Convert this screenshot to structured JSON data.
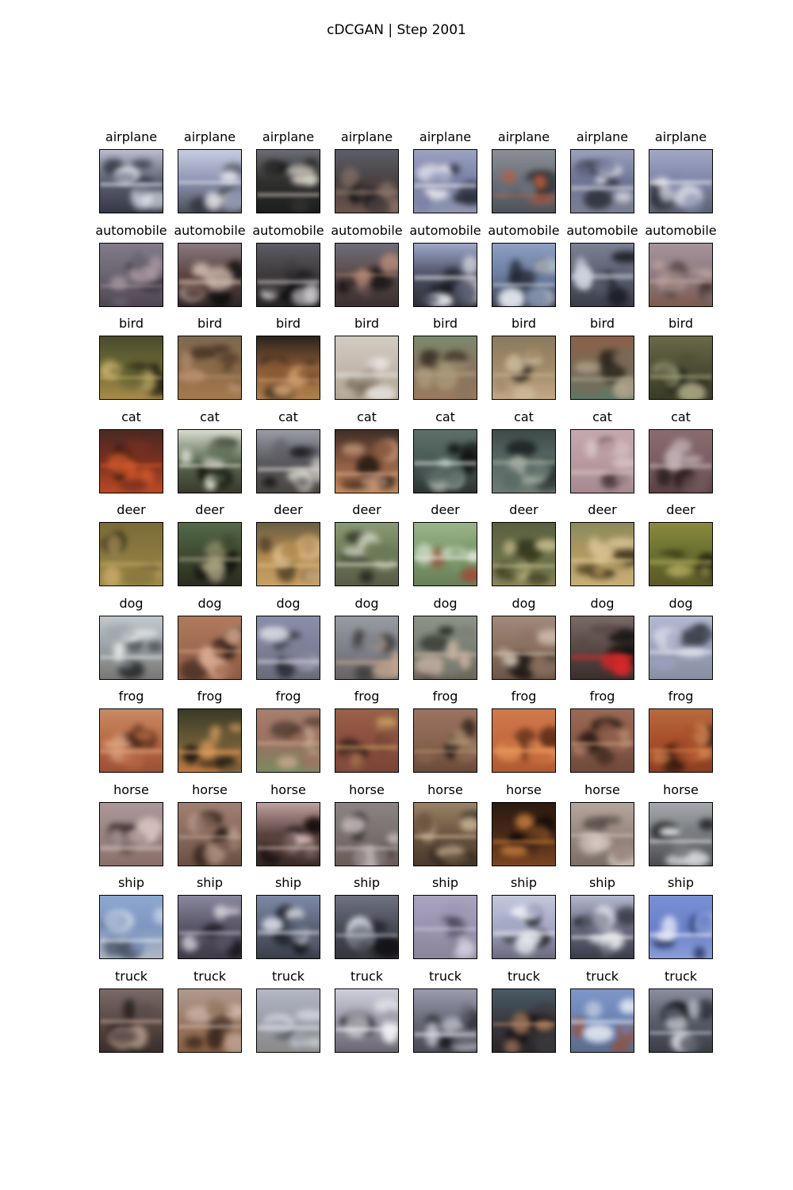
{
  "title": "cDCGAN | Step 2001",
  "rows": [
    {
      "label": "airplane",
      "cells": [
        {
          "bg": "#5d5f72",
          "top": "#b9bed0",
          "bottom": "#353845",
          "accent": "#e8eef5",
          "dark": "#1a1c25"
        },
        {
          "bg": "#8c93b0",
          "top": "#c8cde0",
          "bottom": "#4c4e58",
          "accent": "#f2f2f5",
          "dark": "#2a2c33"
        },
        {
          "bg": "#30302e",
          "top": "#6a6d73",
          "bottom": "#1c1d1d",
          "accent": "#dcd6ca",
          "dark": "#0f1010"
        },
        {
          "bg": "#4a403f",
          "top": "#5c5e6a",
          "bottom": "#6b544a",
          "accent": "#8f7a70",
          "dark": "#141316"
        },
        {
          "bg": "#7a80a4",
          "top": "#9ca2c2",
          "bottom": "#8f94ae",
          "accent": "#e9e9f0",
          "dark": "#2b2d3a"
        },
        {
          "bg": "#6a7078",
          "top": "#8a8f94",
          "bottom": "#4e5259",
          "accent": "#c45a3c",
          "dark": "#2c3136"
        },
        {
          "bg": "#6f7594",
          "top": "#9aa0bd",
          "bottom": "#7b7f92",
          "accent": "#d6d7df",
          "dark": "#1c1d24"
        },
        {
          "bg": "#7e85a8",
          "top": "#a1a7c5",
          "bottom": "#5d6170",
          "accent": "#e5e7ee",
          "dark": "#2d2f38"
        }
      ]
    },
    {
      "label": "automobile",
      "cells": [
        {
          "bg": "#6a6470",
          "top": "#837c88",
          "bottom": "#4f4650",
          "accent": "#b8a7b0",
          "dark": "#2a262d"
        },
        {
          "bg": "#5a4440",
          "top": "#8a7a80",
          "bottom": "#2e2626",
          "accent": "#d9c1b4",
          "dark": "#120f10"
        },
        {
          "bg": "#3e3a3c",
          "top": "#5d5c66",
          "bottom": "#252324",
          "accent": "#d9d6d8",
          "dark": "#0e0e10"
        },
        {
          "bg": "#5b4a4a",
          "top": "#6f6d78",
          "bottom": "#3a2f30",
          "accent": "#b78b7a",
          "dark": "#161314"
        },
        {
          "bg": "#4c5064",
          "top": "#9fa8c8",
          "bottom": "#2e2d33",
          "accent": "#eef0f5",
          "dark": "#14141a"
        },
        {
          "bg": "#6b7da0",
          "top": "#8da0c2",
          "bottom": "#3b3f4c",
          "accent": "#e1e6ef",
          "dark": "#1a1d26"
        },
        {
          "bg": "#5b5f70",
          "top": "#7c8196",
          "bottom": "#3a3d48",
          "accent": "#cfd3df",
          "dark": "#1d1f27"
        },
        {
          "bg": "#8e7a80",
          "top": "#a5949a",
          "bottom": "#7c5a4e",
          "accent": "#c4a9a6",
          "dark": "#3e2e2d"
        }
      ]
    },
    {
      "label": "bird",
      "cells": [
        {
          "bg": "#6b6a36",
          "top": "#4b4b2c",
          "bottom": "#a98a48",
          "accent": "#c8b06a",
          "dark": "#1c1d12"
        },
        {
          "bg": "#8a6a48",
          "top": "#7d6a52",
          "bottom": "#a57a4f",
          "accent": "#b89070",
          "dark": "#3e2a1e"
        },
        {
          "bg": "#8a5a36",
          "top": "#2a231b",
          "bottom": "#b0814d",
          "accent": "#d0a070",
          "dark": "#1a140f"
        },
        {
          "bg": "#c2b9ad",
          "top": "#d2ccc3",
          "bottom": "#b0a290",
          "accent": "#e8e4de",
          "dark": "#6e6152"
        },
        {
          "bg": "#8a7560",
          "top": "#7a8a6c",
          "bottom": "#9a7a5e",
          "accent": "#b0a080",
          "dark": "#3a3026"
        },
        {
          "bg": "#a08a68",
          "top": "#8a7a5e",
          "bottom": "#c2a886",
          "accent": "#d7c4a4",
          "dark": "#3a2e22"
        },
        {
          "bg": "#7a6a56",
          "top": "#8a6048",
          "bottom": "#5e7866",
          "accent": "#b0a48a",
          "dark": "#2b261e"
        },
        {
          "bg": "#4c4e34",
          "top": "#6a6a48",
          "bottom": "#3a3c28",
          "accent": "#a8a680",
          "dark": "#14150e"
        }
      ]
    },
    {
      "label": "cat",
      "cells": [
        {
          "bg": "#7a3020",
          "top": "#4a2a22",
          "bottom": "#b84a24",
          "accent": "#d25a2a",
          "dark": "#1e1210"
        },
        {
          "bg": "#5a6a52",
          "top": "#d8dcd0",
          "bottom": "#3a3a2c",
          "accent": "#f2f0e6",
          "dark": "#16180f"
        },
        {
          "bg": "#5a5a60",
          "top": "#9a9ca4",
          "bottom": "#4a4640",
          "accent": "#e8e4dc",
          "dark": "#121214"
        },
        {
          "bg": "#8a5a40",
          "top": "#3e2e26",
          "bottom": "#c48a60",
          "accent": "#e0b090",
          "dark": "#16100c"
        },
        {
          "bg": "#4a5a56",
          "top": "#5e6e68",
          "bottom": "#2e3432",
          "accent": "#d8ddd6",
          "dark": "#101412"
        },
        {
          "bg": "#5a6a66",
          "top": "#3e4a48",
          "bottom": "#6e7a72",
          "accent": "#a8b0a6",
          "dark": "#1a2020"
        },
        {
          "bg": "#b89aa0",
          "top": "#c4a8ae",
          "bottom": "#a48a8e",
          "accent": "#d8c4c8",
          "dark": "#4e3a3c"
        },
        {
          "bg": "#7a5e62",
          "top": "#8a6c70",
          "bottom": "#5a4044",
          "accent": "#c8b8bc",
          "dark": "#2a1e20"
        }
      ]
    },
    {
      "label": "deer",
      "cells": [
        {
          "bg": "#8a7a40",
          "top": "#7a6a36",
          "bottom": "#a28a4a",
          "accent": "#c4a868",
          "dark": "#2a2614"
        },
        {
          "bg": "#3e4a30",
          "top": "#566a4a",
          "bottom": "#2a2c20",
          "accent": "#a8a080",
          "dark": "#0f120c"
        },
        {
          "bg": "#b08a50",
          "top": "#6a5e44",
          "bottom": "#c8a064",
          "accent": "#e0c090",
          "dark": "#2a2214"
        },
        {
          "bg": "#6a7a56",
          "top": "#8a9a74",
          "bottom": "#5a5a46",
          "accent": "#d8dccc",
          "dark": "#2a2c20"
        },
        {
          "bg": "#7a9a6a",
          "top": "#9ab48a",
          "bottom": "#6a7e5a",
          "accent": "#e0e6d8",
          "dark": "#a04a36"
        },
        {
          "bg": "#6a7048",
          "top": "#5a6040",
          "bottom": "#8a8458",
          "accent": "#c8c090",
          "dark": "#262812"
        },
        {
          "bg": "#b09a60",
          "top": "#8a8a5e",
          "bottom": "#c8ae76",
          "accent": "#e2cca0",
          "dark": "#3a2e18"
        },
        {
          "bg": "#6a7030",
          "top": "#8a8a3e",
          "bottom": "#5a5a26",
          "accent": "#b0a860",
          "dark": "#1e1e0c"
        }
      ]
    },
    {
      "label": "dog",
      "cells": [
        {
          "bg": "#9aa0a6",
          "top": "#c2c8cc",
          "bottom": "#7a7872",
          "accent": "#e4e6e6",
          "dark": "#2a2c2e"
        },
        {
          "bg": "#a06a50",
          "top": "#b07a5e",
          "bottom": "#8a5a44",
          "accent": "#d8aa90",
          "dark": "#2a1c16"
        },
        {
          "bg": "#7e8098",
          "top": "#8a8ea8",
          "bottom": "#6a6a78",
          "accent": "#d6d8e0",
          "dark": "#23242c"
        },
        {
          "bg": "#7e8088",
          "top": "#9a9ca4",
          "bottom": "#6a6460",
          "accent": "#c8a890",
          "dark": "#2e2c2c"
        },
        {
          "bg": "#7a8074",
          "top": "#8e948a",
          "bottom": "#6a665a",
          "accent": "#c4b0a0",
          "dark": "#262820"
        },
        {
          "bg": "#8a7060",
          "top": "#a08a7c",
          "bottom": "#6a5648",
          "accent": "#d6c6b6",
          "dark": "#221c18"
        },
        {
          "bg": "#5a4a46",
          "top": "#7a6a68",
          "bottom": "#3a2e2c",
          "accent": "#d82a2a",
          "dark": "#161212"
        },
        {
          "bg": "#9aa0bc",
          "top": "#b4b8d0",
          "bottom": "#8a8ea0",
          "accent": "#e2e4ee",
          "dark": "#3a3c48"
        }
      ]
    },
    {
      "label": "frog",
      "cells": [
        {
          "bg": "#b86a44",
          "top": "#c88a64",
          "bottom": "#9a5036",
          "accent": "#e0a884",
          "dark": "#3a2014"
        },
        {
          "bg": "#6a5a36",
          "top": "#3a3a26",
          "bottom": "#c07a40",
          "accent": "#e0a060",
          "dark": "#141410"
        },
        {
          "bg": "#9a7060",
          "top": "#a8806e",
          "bottom": "#7a8a60",
          "accent": "#c8a890",
          "dark": "#3a2c24"
        },
        {
          "bg": "#8a5040",
          "top": "#9a6048",
          "bottom": "#7a4434",
          "accent": "#c8a060",
          "dark": "#2c1a14"
        },
        {
          "bg": "#8a6450",
          "top": "#9a7460",
          "bottom": "#6a4a3a",
          "accent": "#b49a78",
          "dark": "#2a1e18"
        },
        {
          "bg": "#c46a3e",
          "top": "#d07a4e",
          "bottom": "#b05a32",
          "accent": "#f0a060",
          "dark": "#5a2a16"
        },
        {
          "bg": "#8a5a48",
          "top": "#9a6a56",
          "bottom": "#6e4a3a",
          "accent": "#c8987c",
          "dark": "#2a1a14"
        },
        {
          "bg": "#a84e2a",
          "top": "#b86a3e",
          "bottom": "#8a3e22",
          "accent": "#d88a54",
          "dark": "#2a140c"
        }
      ]
    },
    {
      "label": "horse",
      "cells": [
        {
          "bg": "#9a8484",
          "top": "#ac9898",
          "bottom": "#8a6e68",
          "accent": "#d8c4c0",
          "dark": "#3a2e2e"
        },
        {
          "bg": "#8a6a5e",
          "top": "#a08070",
          "bottom": "#6a5040",
          "accent": "#c8ac98",
          "dark": "#2a1e18"
        },
        {
          "bg": "#5a4440",
          "top": "#c0a0a0",
          "bottom": "#3a2a26",
          "accent": "#e0c8c4",
          "dark": "#140e0c"
        },
        {
          "bg": "#7a7070",
          "top": "#8c8484",
          "bottom": "#6a5c58",
          "accent": "#c8c0c0",
          "dark": "#2a2424"
        },
        {
          "bg": "#6a5440",
          "top": "#9a8466",
          "bottom": "#4a3a2c",
          "accent": "#d8c0a0",
          "dark": "#18120e"
        },
        {
          "bg": "#4a2a18",
          "top": "#2a1a10",
          "bottom": "#7a4422",
          "accent": "#c47a3a",
          "dark": "#0c0806"
        },
        {
          "bg": "#9a8880",
          "top": "#b4a69e",
          "bottom": "#7a6e66",
          "accent": "#d8ccc4",
          "dark": "#3a322e"
        },
        {
          "bg": "#7a7c80",
          "top": "#a4a8ac",
          "bottom": "#4a4c50",
          "accent": "#e6e8ea",
          "dark": "#161618"
        }
      ]
    },
    {
      "label": "ship",
      "cells": [
        {
          "bg": "#7e96c0",
          "top": "#8ea8d0",
          "bottom": "#b0b8c4",
          "accent": "#e6ecf2",
          "dark": "#3a4454"
        },
        {
          "bg": "#5a5668",
          "top": "#8a88a0",
          "bottom": "#3e3a46",
          "accent": "#d0ccd8",
          "dark": "#16141a"
        },
        {
          "bg": "#5a6276",
          "top": "#7e8aa8",
          "bottom": "#3a3e4a",
          "accent": "#dce0e8",
          "dark": "#14161c"
        },
        {
          "bg": "#4a4c58",
          "top": "#6e7282",
          "bottom": "#34343c",
          "accent": "#c8ccd6",
          "dark": "#121216"
        },
        {
          "bg": "#9a94b0",
          "top": "#aaa4c0",
          "bottom": "#8a8498",
          "accent": "#d6d2e2",
          "dark": "#4a4458"
        },
        {
          "bg": "#a4a8c4",
          "top": "#c4c8dc",
          "bottom": "#6a6a7c",
          "accent": "#eceef6",
          "dark": "#141418"
        },
        {
          "bg": "#6a6c80",
          "top": "#b4b8d0",
          "bottom": "#3a3c48",
          "accent": "#f0f0f6",
          "dark": "#101014"
        },
        {
          "bg": "#6a80c8",
          "top": "#7a90d6",
          "bottom": "#8a9cd8",
          "accent": "#e8ecf8",
          "dark": "#2a3660"
        }
      ]
    },
    {
      "label": "truck",
      "cells": [
        {
          "bg": "#5a4a46",
          "top": "#7a6a68",
          "bottom": "#3a2e2a",
          "accent": "#c8aa9a",
          "dark": "#141010"
        },
        {
          "bg": "#9a7a66",
          "top": "#b09a8e",
          "bottom": "#8a5e40",
          "accent": "#d8c4b8",
          "dark": "#2a1c14"
        },
        {
          "bg": "#9a9ca8",
          "top": "#b4b8c4",
          "bottom": "#8a8a88",
          "accent": "#e4e6ec",
          "dark": "#3a3a40"
        },
        {
          "bg": "#9a98a4",
          "top": "#d0d0dc",
          "bottom": "#6a6670",
          "accent": "#f4f4f8",
          "dark": "#1a1a20"
        },
        {
          "bg": "#6a6a78",
          "top": "#9a9cb0",
          "bottom": "#4a4a54",
          "accent": "#e0e2ea",
          "dark": "#141418"
        },
        {
          "bg": "#3a3a3e",
          "top": "#4a5a66",
          "bottom": "#2a2628",
          "accent": "#c89070",
          "dark": "#0c0c0e"
        },
        {
          "bg": "#6a84b4",
          "top": "#7e96c8",
          "bottom": "#5a6a8c",
          "accent": "#e0e6f2",
          "dark": "#a04a2a"
        },
        {
          "bg": "#5a5e6a",
          "top": "#8a8ea0",
          "bottom": "#3a3c46",
          "accent": "#dcdee6",
          "dark": "#101114"
        }
      ]
    }
  ]
}
